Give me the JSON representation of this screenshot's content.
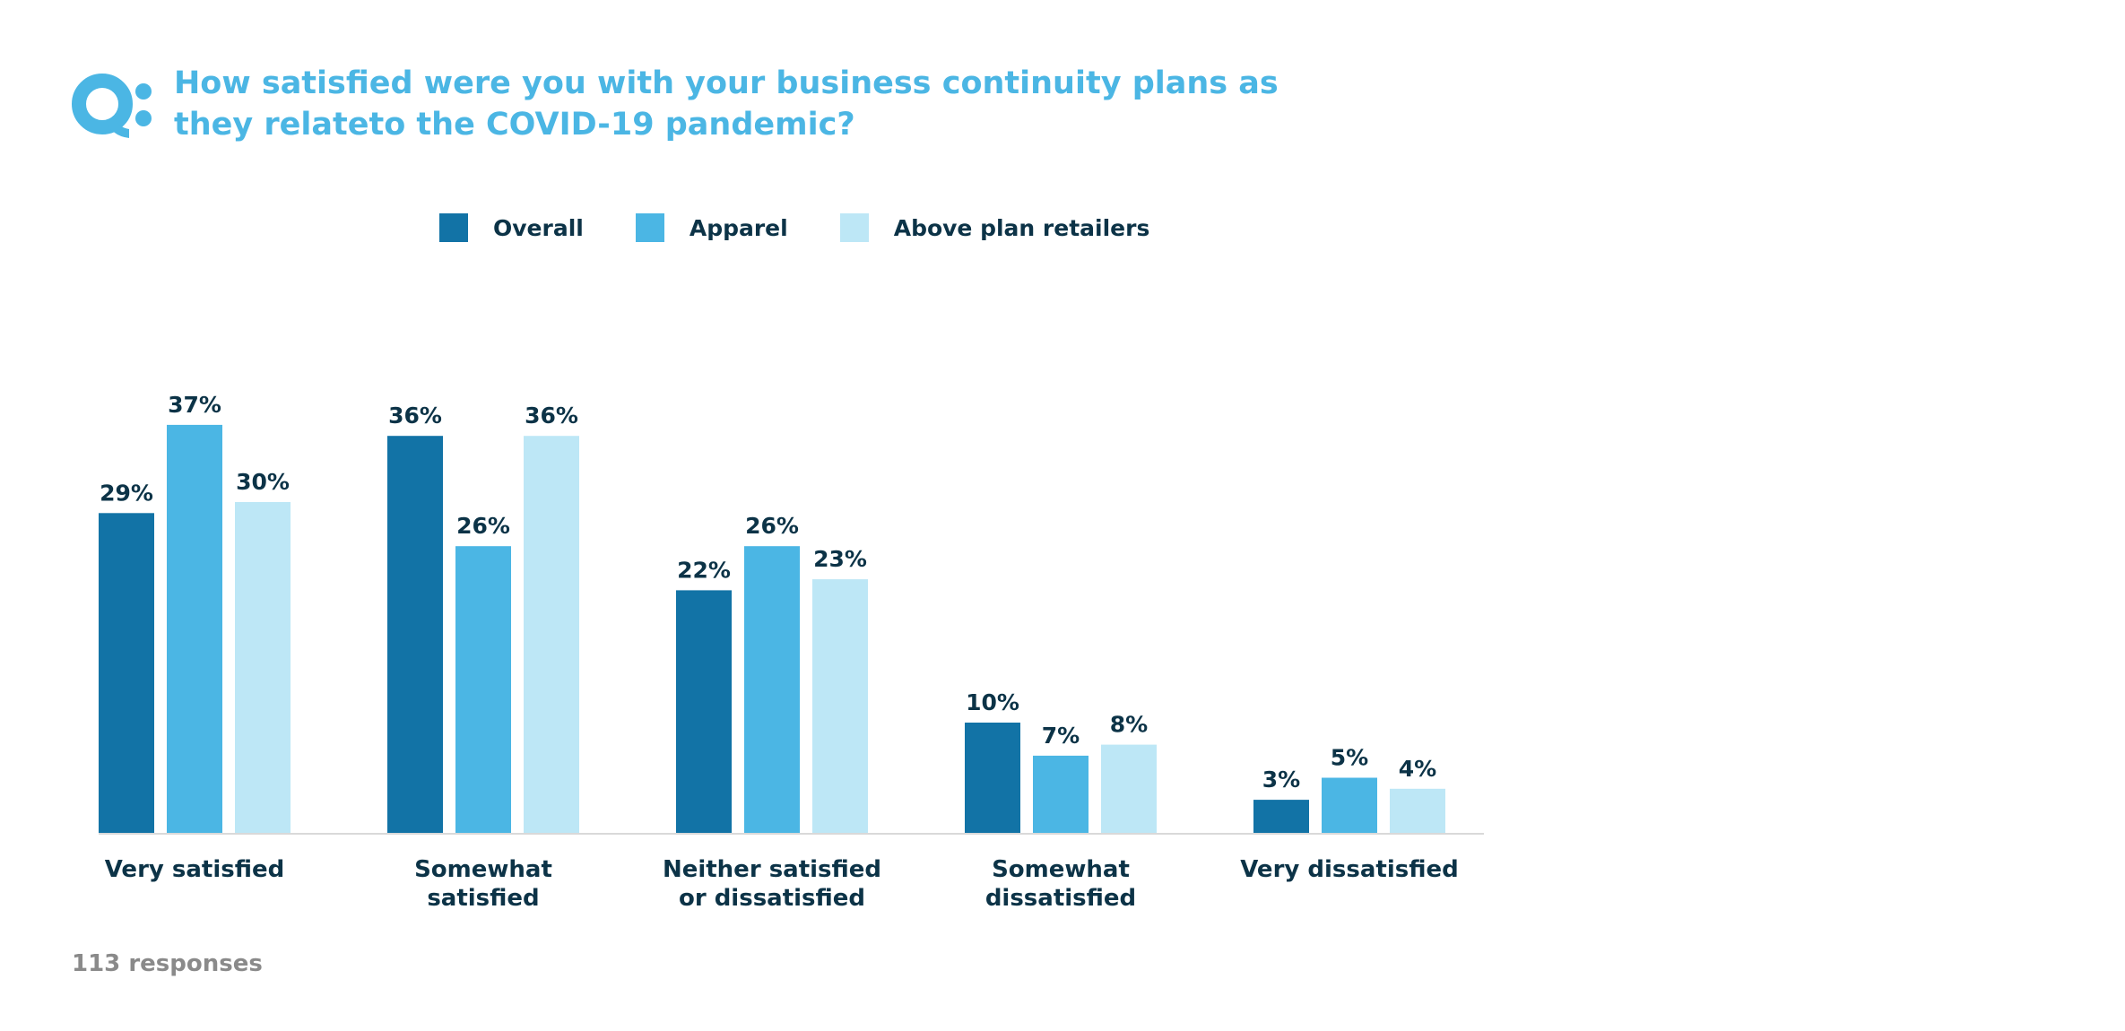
{
  "header": {
    "title_line1": "How satisfied were you with your business continuity plans as",
    "title_line2": "they relateto the COVID-19 pandemic?"
  },
  "footnote": "113 responses",
  "chart_data": {
    "type": "bar",
    "title": "How satisfied were you with your business continuity plans as they relateto the COVID-19 pandemic?",
    "categories": [
      [
        "Very satisfied"
      ],
      [
        "Somewhat",
        "satisfied"
      ],
      [
        "Neither satisfied",
        "or dissatisfied"
      ],
      [
        "Somewhat",
        "dissatisfied"
      ],
      [
        "Very dissatisfied"
      ]
    ],
    "series": [
      {
        "name": "Overall",
        "color": "#1273a6",
        "values": [
          29,
          36,
          22,
          10,
          3
        ]
      },
      {
        "name": "Apparel",
        "color": "#4bb6e4",
        "values": [
          37,
          26,
          26,
          7,
          5
        ]
      },
      {
        "name": "Above plan retailers",
        "color": "#bde7f6",
        "values": [
          30,
          36,
          23,
          8,
          4
        ]
      }
    ],
    "value_suffix": "%",
    "ylim": [
      0,
      40
    ],
    "grid": false,
    "legend_position": "top"
  }
}
